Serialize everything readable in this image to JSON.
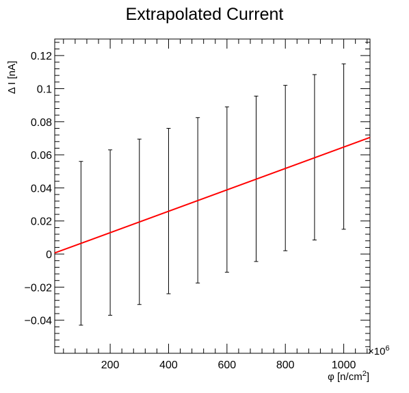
{
  "chart_data": {
    "type": "scatter",
    "title": "Extrapolated Current",
    "xlabel_main": "φ [n/cm",
    "xlabel_sup": "2",
    "xlabel_end": "]",
    "ylabel": "Δ I [nA]",
    "x_multiplier_prefix": "×10",
    "x_multiplier_exp": "6",
    "xlim": [
      10,
      1090
    ],
    "ylim": [
      -0.06,
      0.13
    ],
    "grid": false,
    "xticks": [
      {
        "value": 200,
        "label": "200"
      },
      {
        "value": 400,
        "label": "400"
      },
      {
        "value": 600,
        "label": "600"
      },
      {
        "value": 800,
        "label": "800"
      },
      {
        "value": 1000,
        "label": "1000"
      }
    ],
    "yticks": [
      {
        "value": -0.04,
        "label": "−0.04"
      },
      {
        "value": -0.02,
        "label": "−0.02"
      },
      {
        "value": 0,
        "label": "0"
      },
      {
        "value": 0.02,
        "label": "0.02"
      },
      {
        "value": 0.04,
        "label": "0.04"
      },
      {
        "value": 0.06,
        "label": "0.06"
      },
      {
        "value": 0.08,
        "label": "0.08"
      },
      {
        "value": 0.1,
        "label": "0.1"
      },
      {
        "value": 0.12,
        "label": "0.12"
      }
    ],
    "points": [
      {
        "x": 100,
        "y": 0.0065,
        "err": 0.0495
      },
      {
        "x": 200,
        "y": 0.013,
        "err": 0.05
      },
      {
        "x": 300,
        "y": 0.0195,
        "err": 0.05
      },
      {
        "x": 400,
        "y": 0.026,
        "err": 0.05
      },
      {
        "x": 500,
        "y": 0.0325,
        "err": 0.05
      },
      {
        "x": 600,
        "y": 0.039,
        "err": 0.05
      },
      {
        "x": 700,
        "y": 0.0455,
        "err": 0.05
      },
      {
        "x": 800,
        "y": 0.052,
        "err": 0.05
      },
      {
        "x": 900,
        "y": 0.0585,
        "err": 0.05
      },
      {
        "x": 1000,
        "y": 0.065,
        "err": 0.05
      }
    ],
    "fit_line": {
      "x": [
        10,
        1090
      ],
      "y": [
        0.00065,
        0.0705
      ]
    },
    "colors": {
      "fit": "#ff0000",
      "errorbar": "#000000",
      "axis": "#000000"
    }
  }
}
